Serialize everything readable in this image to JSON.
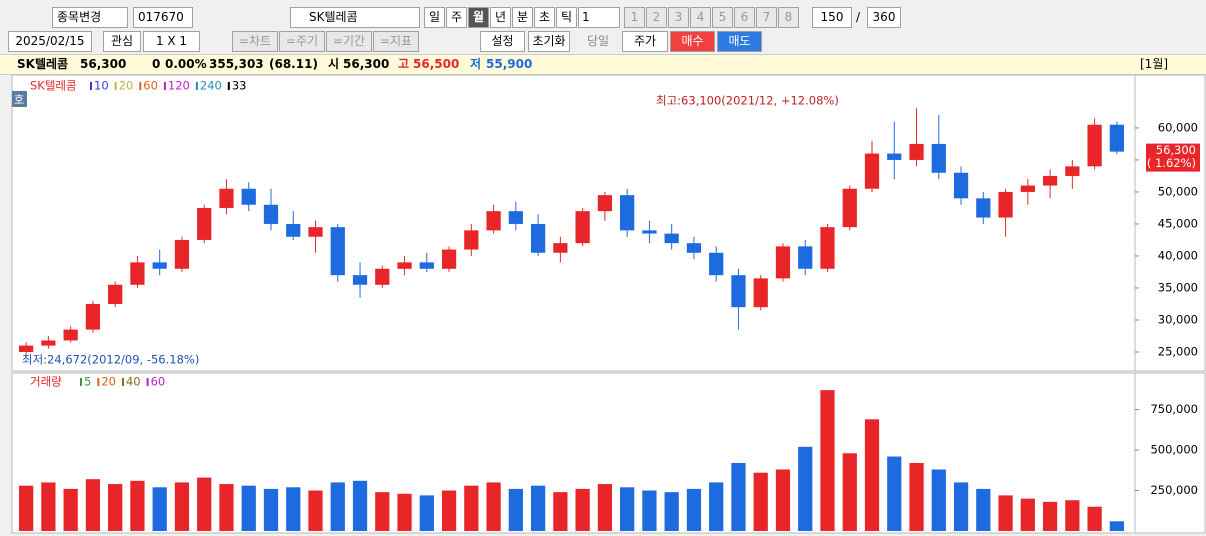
{
  "toolbar": {
    "stock_change": "종목변경",
    "code": "017670",
    "name": "SK텔레콤",
    "periods": [
      "일",
      "주",
      "월",
      "년",
      "분",
      "초",
      "틱"
    ],
    "tick_count": "1",
    "slots": [
      "1",
      "2",
      "3",
      "4",
      "5",
      "6",
      "7",
      "8"
    ],
    "count": "150",
    "sep": "/",
    "total": "360"
  },
  "toolbar2": {
    "date": "2025/02/15",
    "interest": "관심",
    "layout": "1 X 1",
    "buttons": [
      "=차트",
      "=주기",
      "=기간",
      "=지표"
    ],
    "settings": "설정",
    "reset": "초기화",
    "today": "당일",
    "price": "주가",
    "buy": "매수",
    "sell": "매도"
  },
  "info": {
    "name": "SK텔레콤",
    "price": "56,300",
    "change": "0",
    "rate": "0.00%",
    "volume": "355,303",
    "ratio": "(68.11)",
    "open_label": "시",
    "open": "56,300",
    "high_label": "고",
    "high": "56,500",
    "low_label": "저",
    "low": "55,900",
    "period": "[1월]"
  },
  "chart_data": {
    "type": "candlestick",
    "badge": "호",
    "title": "SK텔레콤",
    "up_color": "#e8262a",
    "down_color": "#1e6be0",
    "ma_legend": [
      {
        "name": "10",
        "color": "#3a3ad8"
      },
      {
        "name": "20",
        "color": "#b8b83a"
      },
      {
        "name": "60",
        "color": "#e06010"
      },
      {
        "name": "120",
        "color": "#c020c0"
      },
      {
        "name": "240",
        "color": "#2090c0"
      },
      {
        "name": "33",
        "color": "#000000"
      }
    ],
    "high_note": "최고:63,100(2021/12, +12.08%)",
    "low_note": "최저:24,672(2012/09, -56.18%)",
    "price_tag": {
      "value": 56300,
      "label": "56,300",
      "change": "( 1.62%)"
    },
    "candles": [
      [
        25000,
        26500,
        24672,
        26000
      ],
      [
        26000,
        27500,
        25500,
        26800
      ],
      [
        26800,
        29000,
        26500,
        28500
      ],
      [
        28500,
        33000,
        28000,
        32500
      ],
      [
        32500,
        36000,
        32000,
        35500
      ],
      [
        35500,
        40000,
        35000,
        39000
      ],
      [
        39000,
        41000,
        37000,
        38000
      ],
      [
        38000,
        43000,
        37500,
        42500
      ],
      [
        42500,
        48000,
        42000,
        47500
      ],
      [
        47500,
        52000,
        46500,
        50500
      ],
      [
        50500,
        51500,
        47000,
        48000
      ],
      [
        48000,
        50500,
        44000,
        45000
      ],
      [
        45000,
        47000,
        42500,
        43000
      ],
      [
        43000,
        45500,
        40500,
        44500
      ],
      [
        44500,
        45000,
        36000,
        37000
      ],
      [
        37000,
        39000,
        33500,
        35500
      ],
      [
        35500,
        38500,
        35000,
        38000
      ],
      [
        38000,
        40000,
        37000,
        39000
      ],
      [
        39000,
        40500,
        37500,
        38000
      ],
      [
        38000,
        41500,
        37500,
        41000
      ],
      [
        41000,
        45000,
        40000,
        44000
      ],
      [
        44000,
        48000,
        43500,
        47000
      ],
      [
        47000,
        48500,
        44000,
        45000
      ],
      [
        45000,
        46500,
        40000,
        40500
      ],
      [
        40500,
        43000,
        39000,
        42000
      ],
      [
        42000,
        47500,
        41500,
        47000
      ],
      [
        47000,
        50000,
        45500,
        49500
      ],
      [
        49500,
        50500,
        43000,
        44000
      ],
      [
        44000,
        45500,
        42000,
        43500
      ],
      [
        43500,
        45000,
        41000,
        42000
      ],
      [
        42000,
        43000,
        39500,
        40500
      ],
      [
        40500,
        41500,
        36000,
        37000
      ],
      [
        37000,
        38000,
        28500,
        32000
      ],
      [
        32000,
        37000,
        31500,
        36500
      ],
      [
        36500,
        42000,
        36000,
        41500
      ],
      [
        41500,
        42500,
        37000,
        38000
      ],
      [
        38000,
        45000,
        37500,
        44500
      ],
      [
        44500,
        51000,
        44000,
        50500
      ],
      [
        50500,
        58000,
        50000,
        56000
      ],
      [
        56000,
        61000,
        52000,
        55000
      ],
      [
        55000,
        63100,
        54000,
        57500
      ],
      [
        57500,
        62000,
        52000,
        53000
      ],
      [
        53000,
        54000,
        48000,
        49000
      ],
      [
        49000,
        50000,
        45000,
        46000
      ],
      [
        46000,
        50500,
        43000,
        50000
      ],
      [
        50000,
        52000,
        48000,
        51000
      ],
      [
        51000,
        53500,
        49000,
        52500
      ],
      [
        52500,
        55000,
        50500,
        54000
      ],
      [
        54000,
        61500,
        53500,
        60500
      ],
      [
        60500,
        61000,
        55900,
        56300
      ]
    ],
    "ylim": [
      22500,
      67800
    ],
    "yticks": [
      {
        "value": 25000,
        "label": "25,000"
      },
      {
        "value": 30000,
        "label": "30,000"
      },
      {
        "value": 35000,
        "label": "35,000"
      },
      {
        "value": 40000,
        "label": "40,000"
      },
      {
        "value": 45000,
        "label": "45,000"
      },
      {
        "value": 50000,
        "label": "50,000"
      },
      {
        "value": 55000,
        "label": "55,000"
      },
      {
        "value": 60000,
        "label": "60,000"
      }
    ],
    "volume_title": "거래량",
    "volume_legend": [
      {
        "name": "5",
        "color": "#3a9a3a"
      },
      {
        "name": "20",
        "color": "#e06010"
      },
      {
        "name": "40",
        "color": "#8a6a20"
      },
      {
        "name": "60",
        "color": "#c020c0"
      }
    ],
    "volume": [
      280000,
      300000,
      260000,
      320000,
      290000,
      310000,
      270000,
      300000,
      330000,
      290000,
      280000,
      260000,
      270000,
      250000,
      300000,
      310000,
      240000,
      230000,
      220000,
      250000,
      280000,
      300000,
      260000,
      280000,
      240000,
      260000,
      290000,
      270000,
      250000,
      240000,
      260000,
      300000,
      420000,
      360000,
      380000,
      520000,
      870000,
      480000,
      690000,
      460000,
      420000,
      380000,
      300000,
      260000,
      220000,
      200000,
      180000,
      190000,
      150000,
      60000
    ],
    "vlim": [
      0,
      945000
    ],
    "vticks": [
      {
        "value": 250000,
        "label": "250,000"
      },
      {
        "value": 500000,
        "label": "500,000"
      },
      {
        "value": 750000,
        "label": "750,000"
      }
    ]
  }
}
